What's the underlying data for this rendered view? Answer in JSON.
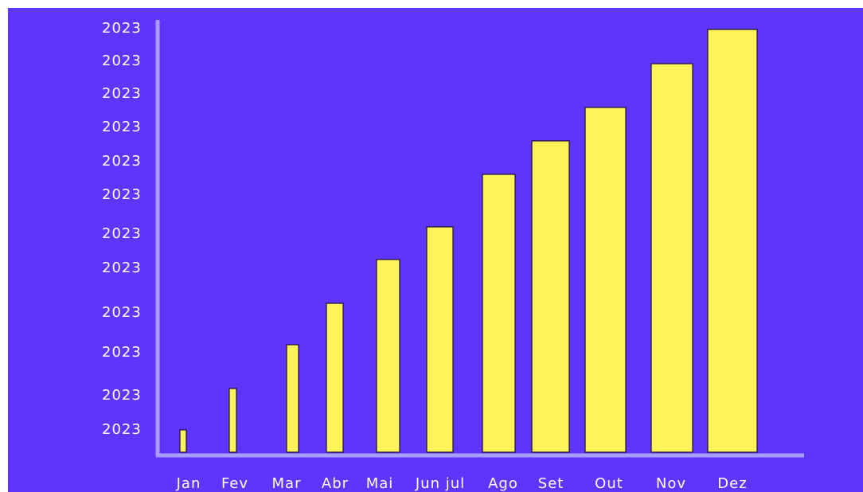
{
  "chart_data": {
    "type": "bar",
    "categories": [
      "Jan",
      "Fev",
      "Mar",
      "Abr",
      "Mai",
      "Jun jul",
      "Ago",
      "Set",
      "Out",
      "Nov",
      "Dez"
    ],
    "values": [
      28,
      80,
      135,
      187,
      242,
      283,
      349,
      391,
      433,
      488,
      531
    ],
    "color": "#fff35a",
    "ylim": [
      0,
      540
    ],
    "yticks": [
      {
        "value": 532,
        "label": "2023"
      },
      {
        "value": 491,
        "label": "2023"
      },
      {
        "value": 450,
        "label": "2023"
      },
      {
        "value": 408,
        "label": "2023"
      },
      {
        "value": 365,
        "label": "2023"
      },
      {
        "value": 323,
        "label": "2023"
      },
      {
        "value": 274,
        "label": "2023"
      },
      {
        "value": 231,
        "label": "2023"
      },
      {
        "value": 175,
        "label": "2023"
      },
      {
        "value": 125,
        "label": "2023"
      },
      {
        "value": 71,
        "label": "2023"
      },
      {
        "value": 28,
        "label": "2023"
      }
    ]
  }
}
